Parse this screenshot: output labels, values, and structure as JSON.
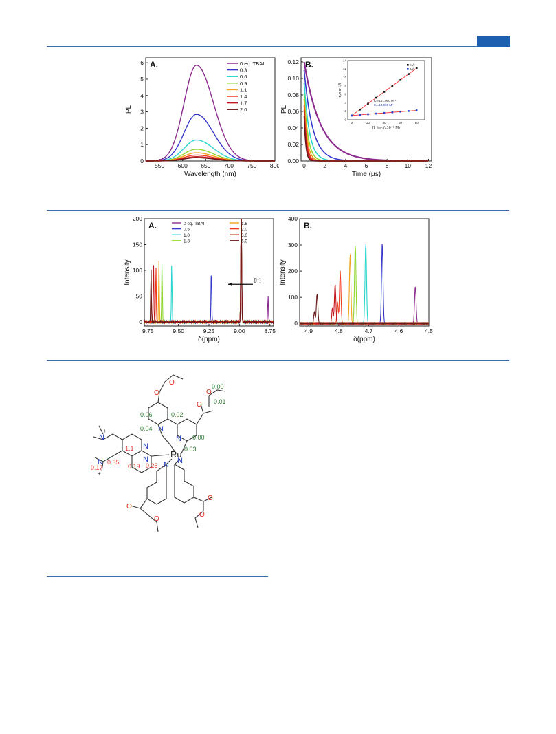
{
  "colors": {
    "rule": "#3a6ea5",
    "badge": "#1c5fb0",
    "ligand_green": "#2e7d32",
    "ligand_red": "#e53935",
    "nitrogen": "#1f3fc4",
    "oxygen": "#e0301e"
  },
  "figure1": {
    "panelA": {
      "chart_data": {
        "type": "line",
        "panel_label": "A.",
        "xlabel": "Wavelength (nm)",
        "ylabel": "PL",
        "xlim": [
          520,
          800
        ],
        "ylim": [
          0,
          6.3
        ],
        "xticks": [
          "550",
          "600",
          "650",
          "700",
          "750",
          "800"
        ],
        "yticks": [
          "0",
          "1",
          "2",
          "3",
          "4",
          "5",
          "6"
        ],
        "legend_position": "top-right",
        "peak_nm": 630,
        "series": [
          {
            "name": "0 eq. TBAI",
            "peak": 5.85,
            "color": "#8b2c8e"
          },
          {
            "name": "0.3",
            "peak": 2.85,
            "color": "#3538c8"
          },
          {
            "name": "0.6",
            "peak": 1.28,
            "color": "#2cd4cf"
          },
          {
            "name": "0.9",
            "peak": 0.72,
            "color": "#8fd82e"
          },
          {
            "name": "1.1",
            "peak": 0.5,
            "color": "#f2a51c"
          },
          {
            "name": "1.4",
            "peak": 0.36,
            "color": "#f03a1e"
          },
          {
            "name": "1.7",
            "peak": 0.26,
            "color": "#c4161c"
          },
          {
            "name": "2.0",
            "peak": 0.2,
            "color": "#6a1a1a"
          }
        ]
      }
    },
    "panelB": {
      "chart_data": {
        "type": "line",
        "panel_label": "B.",
        "xlabel": "Time (μs)",
        "ylabel": "PL",
        "xlim": [
          -0.3,
          12.3
        ],
        "ylim": [
          0,
          0.125
        ],
        "xticks": [
          "0",
          "2",
          "4",
          "6",
          "8",
          "10",
          "12"
        ],
        "yticks": [
          "0.00",
          "0.02",
          "0.04",
          "0.06",
          "0.08",
          "0.10",
          "0.12"
        ],
        "series": [
          {
            "amplitude": 0.12,
            "tau": 1.6,
            "color": "#8b2c8e"
          },
          {
            "amplitude": 0.11,
            "tau": 0.82,
            "color": "#3538c8"
          },
          {
            "amplitude": 0.095,
            "tau": 0.52,
            "color": "#2cd4cf"
          },
          {
            "amplitude": 0.082,
            "tau": 0.38,
            "color": "#8fd82e"
          },
          {
            "amplitude": 0.075,
            "tau": 0.3,
            "color": "#f2a51c"
          },
          {
            "amplitude": 0.068,
            "tau": 0.24,
            "color": "#f03a1e"
          },
          {
            "amplitude": 0.062,
            "tau": 0.2,
            "color": "#c4161c"
          },
          {
            "amplitude": 0.055,
            "tau": 0.16,
            "color": "#6a1a1a"
          }
        ]
      },
      "inset": {
        "chart_data": {
          "type": "scatter",
          "xlabel": "[I⁻]₀₀₀ (x10⁻⁶ M)",
          "ylabel": "τ₀/τ or I₀/I",
          "xlim": [
            -5,
            90
          ],
          "ylim": [
            0,
            14
          ],
          "xticks": [
            "0",
            "20",
            "40",
            "60",
            "80"
          ],
          "yticks": [
            "0",
            "2",
            "4",
            "6",
            "8",
            "10",
            "12",
            "14"
          ],
          "legend": [
            "τ₀/τ",
            "I₀/I"
          ],
          "annotations": [
            "Kₛ=141,000 M⁻¹",
            "Kₛ=14,900 M⁻¹"
          ],
          "series": [
            {
              "name": "τ₀/τ",
              "color": "#111111",
              "x": [
                0,
                10,
                20,
                30,
                40,
                50,
                60,
                70,
                80
              ],
              "y": [
                1.0,
                2.4,
                3.8,
                5.2,
                6.6,
                8.0,
                9.4,
                10.8,
                12.2
              ]
            },
            {
              "name": "I₀/I",
              "color": "#2b3fd1",
              "x": [
                0,
                10,
                20,
                30,
                40,
                50,
                60,
                70,
                80
              ],
              "y": [
                1.0,
                1.15,
                1.3,
                1.45,
                1.6,
                1.75,
                1.9,
                2.05,
                2.2
              ]
            }
          ]
        }
      }
    }
  },
  "figure2": {
    "panelA": {
      "chart_data": {
        "type": "line",
        "panel_label": "A.",
        "xlabel": "δ(ppm)",
        "ylabel": "Intensity",
        "xlim": [
          9.78,
          8.72
        ],
        "ylim": [
          -8,
          200
        ],
        "xticks": [
          "9.75",
          "9.50",
          "9.25",
          "9.00",
          "8.75"
        ],
        "yticks": [
          "0",
          "50",
          "100",
          "150",
          "200"
        ],
        "arrow_label": "[I⁻]",
        "legend_position": "top",
        "tall_peak_ppm": 8.985,
        "series": [
          {
            "name": "0 eq. TBAI",
            "peak_ppm": 8.765,
            "height": 55,
            "color": "#8b2c8e"
          },
          {
            "name": "0.5",
            "peak_ppm": 9.23,
            "height": 115,
            "color": "#3538c8"
          },
          {
            "name": "1.0",
            "peak_ppm": 9.555,
            "height": 115,
            "color": "#2cd4cf"
          },
          {
            "name": "1.3",
            "peak_ppm": 9.635,
            "height": 120,
            "color": "#8fd82e"
          },
          {
            "name": "1.6",
            "peak_ppm": 9.66,
            "height": 120,
            "color": "#f2a51c"
          },
          {
            "name": "2.0",
            "peak_ppm": 9.685,
            "height": 110,
            "color": "#f03a1e"
          },
          {
            "name": "3.0",
            "peak_ppm": 9.705,
            "height": 120,
            "color": "#c4161c"
          },
          {
            "name": "6.0",
            "peak_ppm": 9.725,
            "height": 108,
            "color": "#6a1a1a"
          }
        ]
      }
    },
    "panelB": {
      "chart_data": {
        "type": "line",
        "panel_label": "B.",
        "xlabel": "δ(ppm)",
        "ylabel": "Intensity",
        "xlim": [
          4.93,
          4.5
        ],
        "ylim": [
          -10,
          400
        ],
        "xticks": [
          "4.9",
          "4.8",
          "4.7",
          "4.6",
          "4.5"
        ],
        "yticks": [
          "0",
          "100",
          "200",
          "300",
          "400"
        ],
        "series": [
          {
            "peak_ppm": 4.545,
            "height": 145,
            "color": "#8b2c8e"
          },
          {
            "peak_ppm": 4.655,
            "height": 310,
            "color": "#3538c8"
          },
          {
            "peak_ppm": 4.71,
            "height": 310,
            "color": "#2cd4cf"
          },
          {
            "peak_ppm": 4.745,
            "height": 305,
            "color": "#8fd82e"
          },
          {
            "peak_ppm": 4.762,
            "height": 265,
            "color": "#f2a51c"
          },
          {
            "peak_ppm": 4.795,
            "height": 200,
            "color": "#f03a1e"
          },
          {
            "peak_ppm": 4.812,
            "height": 150,
            "color": "#c4161c"
          },
          {
            "peak_ppm": 4.872,
            "height": 115,
            "color": "#6a1a1a"
          }
        ]
      }
    }
  },
  "figure3": {
    "metal": "Ru",
    "nitrogen": "N",
    "oxygen": "O",
    "plus": "+",
    "shift_labels_green": [
      "0.00",
      "-0.01",
      "0.06",
      "-0.02",
      "0.04",
      "0.00",
      "0.03"
    ],
    "shift_labels_red": [
      "1.1",
      "0.17",
      "0.35",
      "0.19",
      "0.25"
    ]
  }
}
